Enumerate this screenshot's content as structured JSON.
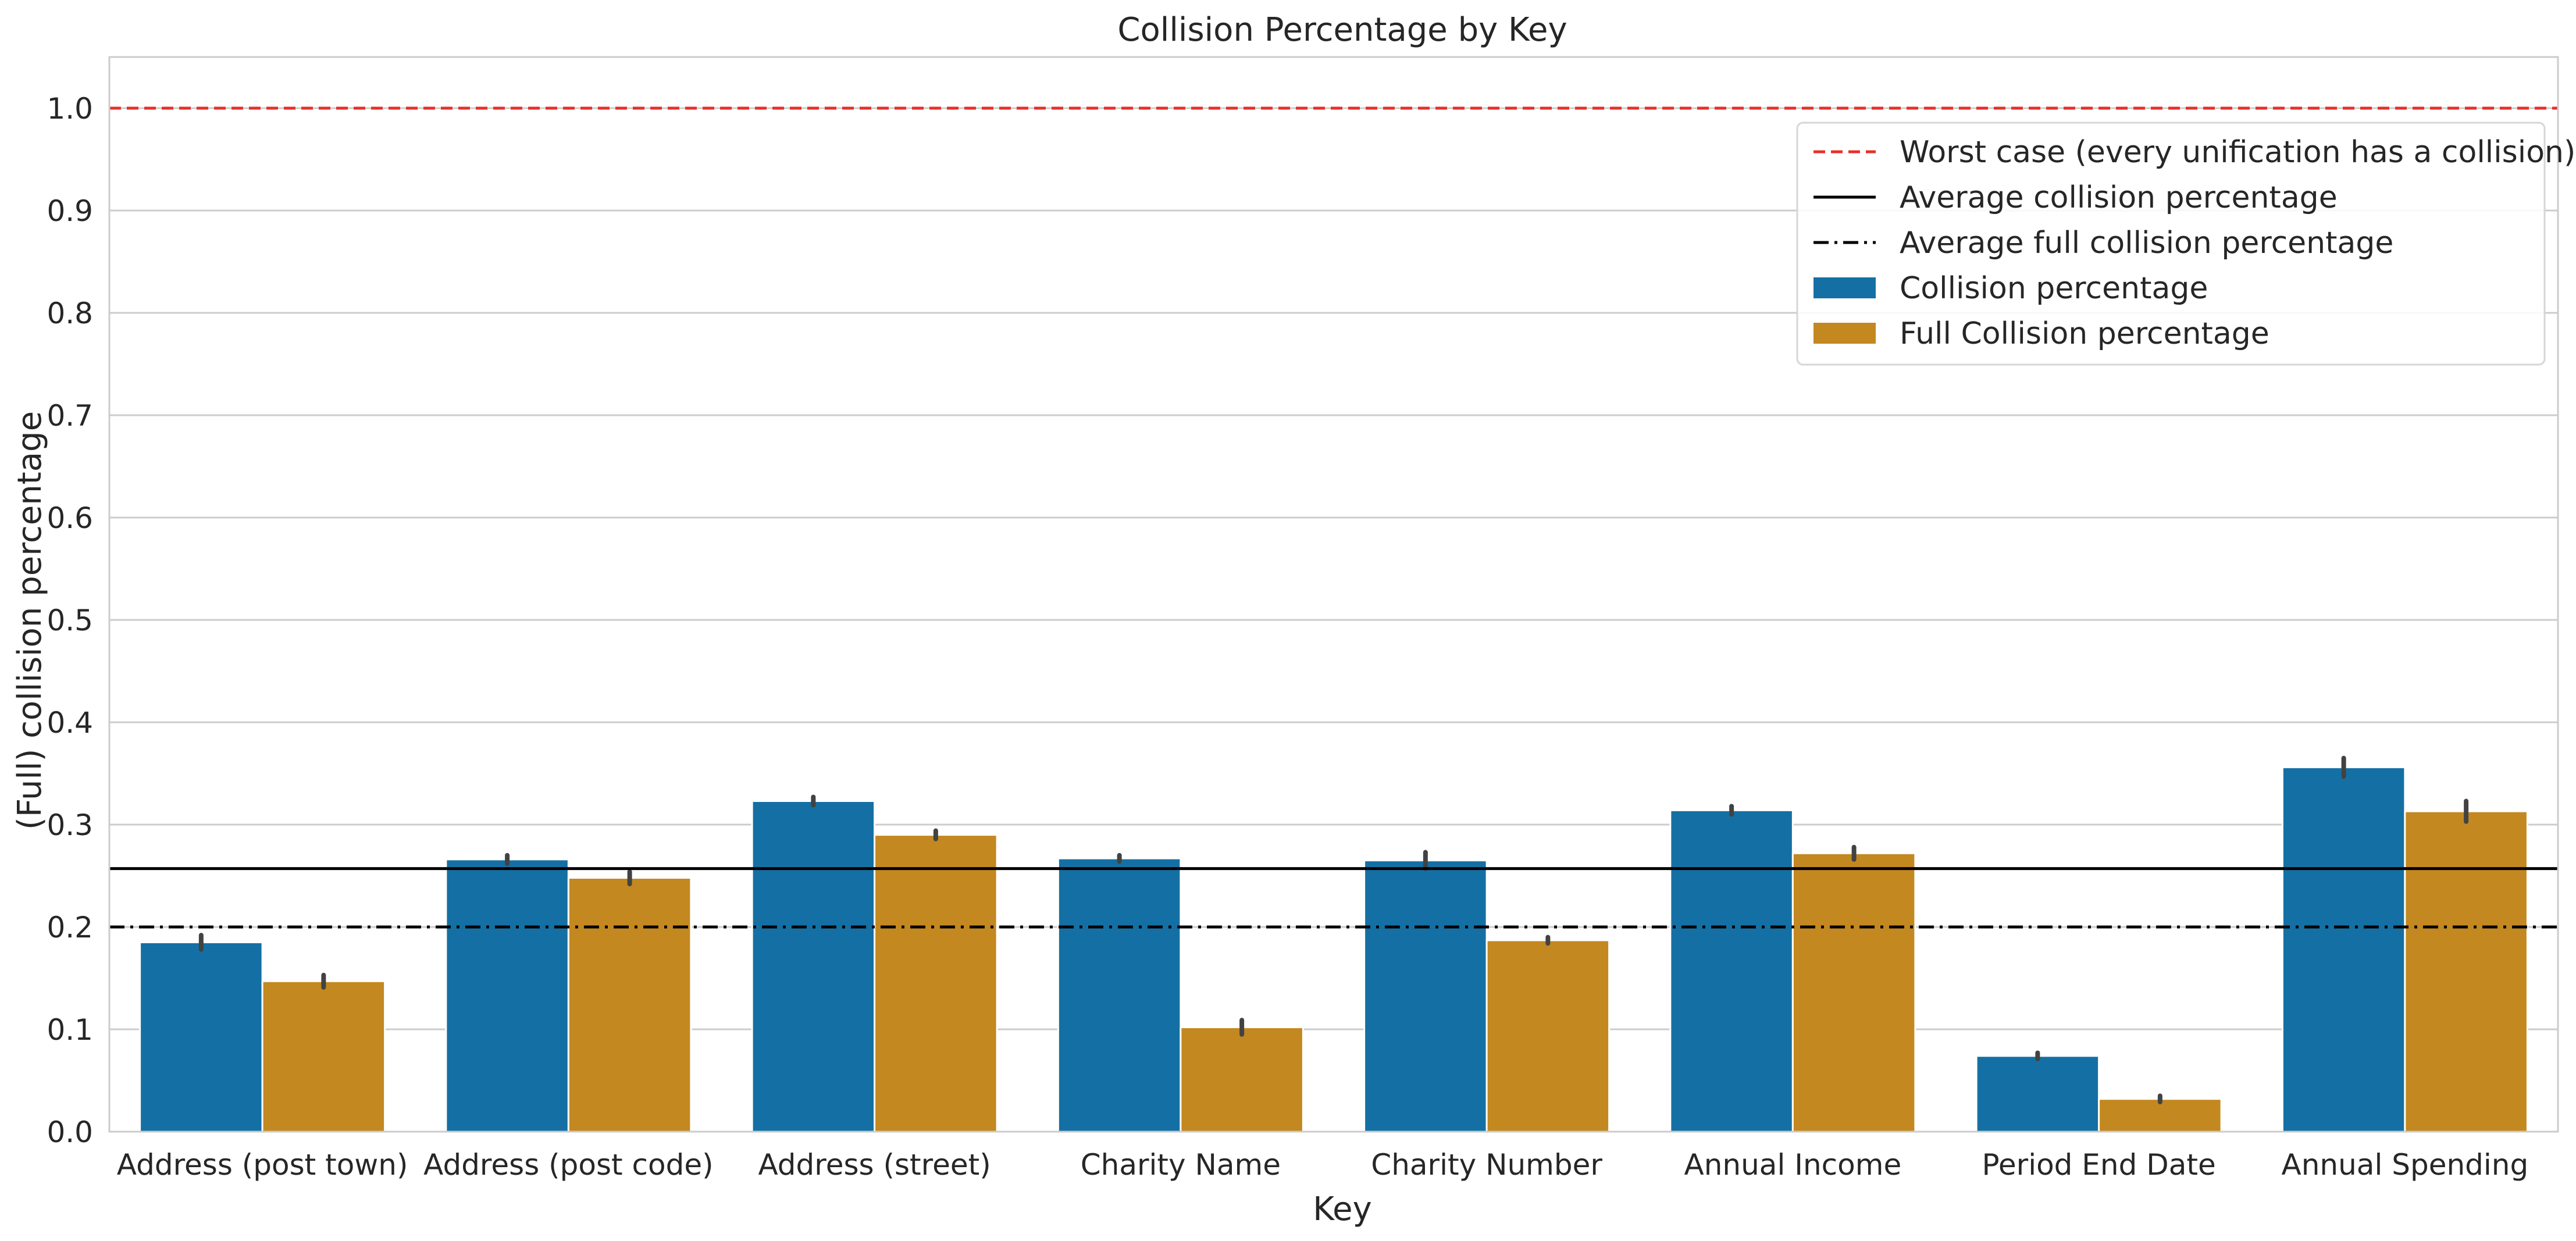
{
  "chart_data": {
    "type": "bar",
    "title": "Collision Percentage by Key",
    "xlabel": "Key",
    "ylabel": "(Full) collision percentage",
    "ylim": [
      0.0,
      1.05
    ],
    "yticks": [
      "0.0",
      "0.1",
      "0.2",
      "0.3",
      "0.4",
      "0.5",
      "0.6",
      "0.7",
      "0.8",
      "0.9",
      "1.0"
    ],
    "yticks_values": [
      0.0,
      0.1,
      0.2,
      0.3,
      0.4,
      0.5,
      0.6,
      0.7,
      0.8,
      0.9,
      1.0
    ],
    "grid": true,
    "legend_position": "top-right",
    "categories": [
      "Address (post town)",
      "Address (post code)",
      "Address (street)",
      "Charity Name",
      "Charity Number",
      "Annual Income",
      "Period End Date",
      "Annual Spending"
    ],
    "series": [
      {
        "name": "Collision percentage",
        "color": "#1470a4",
        "values": [
          0.185,
          0.266,
          0.323,
          0.267,
          0.265,
          0.314,
          0.074,
          0.356
        ],
        "error": [
          0.007,
          0.004,
          0.004,
          0.003,
          0.008,
          0.004,
          0.003,
          0.009
        ]
      },
      {
        "name": "Full Collision percentage",
        "color": "#c38820",
        "values": [
          0.147,
          0.248,
          0.29,
          0.102,
          0.187,
          0.272,
          0.032,
          0.313
        ],
        "error": [
          0.006,
          0.006,
          0.004,
          0.007,
          0.003,
          0.006,
          0.003,
          0.01
        ]
      }
    ],
    "reference_lines": [
      {
        "name": "Worst case (every unification has a collision)",
        "value": 1.0,
        "color": "#e8302a",
        "style": "dashed"
      },
      {
        "name": "Average collision percentage",
        "value": 0.257,
        "color": "#000000",
        "style": "solid"
      },
      {
        "name": "Average full collision percentage",
        "value": 0.2,
        "color": "#000000",
        "style": "dashdot"
      }
    ],
    "legend": [
      {
        "label": "Worst case (every unification has a collision)",
        "kind": "line",
        "color": "#e8302a",
        "style": "dashed"
      },
      {
        "label": "Average collision percentage",
        "kind": "line",
        "color": "#000000",
        "style": "solid"
      },
      {
        "label": "Average full collision percentage",
        "kind": "line",
        "color": "#000000",
        "style": "dashdot"
      },
      {
        "label": "Collision percentage",
        "kind": "patch",
        "color": "#1470a4"
      },
      {
        "label": "Full Collision percentage",
        "kind": "patch",
        "color": "#c38820"
      }
    ]
  }
}
